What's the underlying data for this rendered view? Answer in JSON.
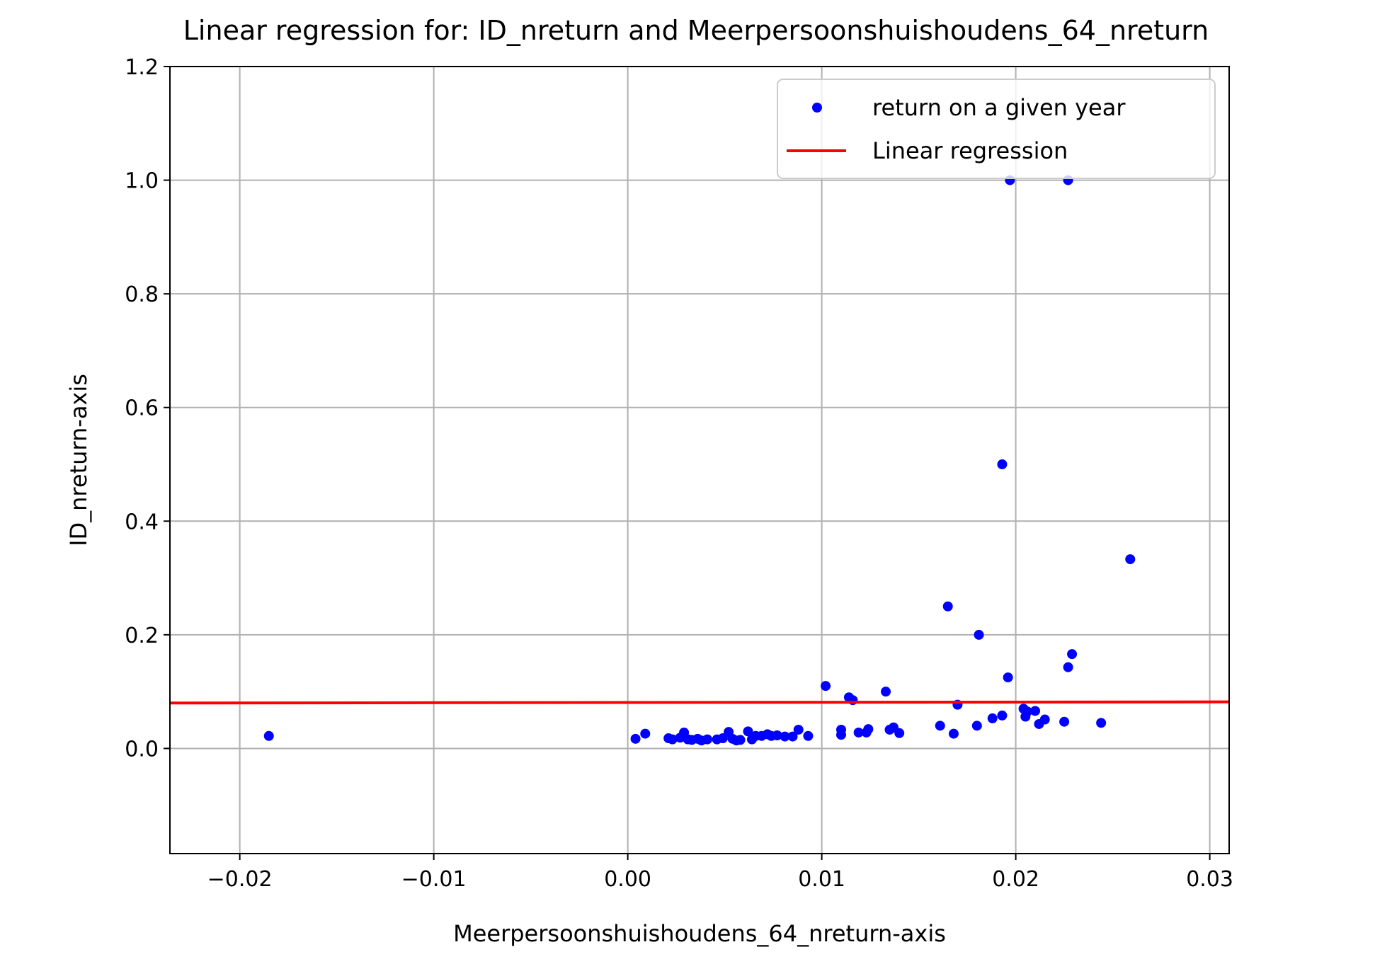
{
  "chart_data": {
    "type": "scatter",
    "title": "Linear regression for: ID_nreturn and Meerpersoonshuishoudens_64_nreturn",
    "xlabel": "Meerpersoonshuishoudens_64_nreturn-axis",
    "ylabel": "ID_nreturn-axis",
    "xlim": [
      -0.0236,
      0.031
    ],
    "ylim": [
      -0.185,
      1.2
    ],
    "xticks": [
      -0.02,
      -0.01,
      0.0,
      0.01,
      0.02,
      0.03
    ],
    "xtick_labels": [
      "−0.02",
      "−0.01",
      "0.00",
      "0.01",
      "0.02",
      "0.03"
    ],
    "yticks": [
      0.0,
      0.2,
      0.4,
      0.6,
      0.8,
      1.0,
      1.2
    ],
    "ytick_labels": [
      "0.0",
      "0.2",
      "0.4",
      "0.6",
      "0.8",
      "1.0",
      "1.2"
    ],
    "grid": true,
    "legend": {
      "position": "top-right",
      "entries": [
        {
          "label": "return on a given year",
          "kind": "marker",
          "color": "#0000ff"
        },
        {
          "label": "Linear regression",
          "kind": "line",
          "color": "#ff0000"
        }
      ]
    },
    "series": [
      {
        "name": "return on a given year",
        "kind": "scatter",
        "color": "#0000ff",
        "points": [
          [
            -0.0185,
            0.022
          ],
          [
            0.0004,
            0.017
          ],
          [
            0.0009,
            0.026
          ],
          [
            0.0021,
            0.018
          ],
          [
            0.0023,
            0.016
          ],
          [
            0.0027,
            0.019
          ],
          [
            0.0029,
            0.028
          ],
          [
            0.0031,
            0.016
          ],
          [
            0.0033,
            0.015
          ],
          [
            0.0036,
            0.017
          ],
          [
            0.0038,
            0.014
          ],
          [
            0.0041,
            0.016
          ],
          [
            0.0046,
            0.016
          ],
          [
            0.0049,
            0.018
          ],
          [
            0.0052,
            0.029
          ],
          [
            0.0054,
            0.017
          ],
          [
            0.0056,
            0.014
          ],
          [
            0.0058,
            0.015
          ],
          [
            0.0062,
            0.03
          ],
          [
            0.0064,
            0.016
          ],
          [
            0.0066,
            0.022
          ],
          [
            0.0069,
            0.022
          ],
          [
            0.0072,
            0.025
          ],
          [
            0.0074,
            0.022
          ],
          [
            0.0077,
            0.023
          ],
          [
            0.0081,
            0.021
          ],
          [
            0.0085,
            0.021
          ],
          [
            0.0088,
            0.033
          ],
          [
            0.0093,
            0.022
          ],
          [
            0.0102,
            0.11
          ],
          [
            0.011,
            0.033
          ],
          [
            0.011,
            0.024
          ],
          [
            0.0114,
            0.09
          ],
          [
            0.0116,
            0.085
          ],
          [
            0.0119,
            0.028
          ],
          [
            0.0123,
            0.028
          ],
          [
            0.0124,
            0.034
          ],
          [
            0.0133,
            0.1
          ],
          [
            0.0135,
            0.033
          ],
          [
            0.0137,
            0.037
          ],
          [
            0.014,
            0.027
          ],
          [
            0.0161,
            0.04
          ],
          [
            0.0165,
            0.25
          ],
          [
            0.0168,
            0.026
          ],
          [
            0.017,
            0.077
          ],
          [
            0.018,
            0.04
          ],
          [
            0.0181,
            0.2
          ],
          [
            0.0188,
            0.053
          ],
          [
            0.0193,
            0.058
          ],
          [
            0.0193,
            0.5
          ],
          [
            0.0196,
            0.125
          ],
          [
            0.0197,
            1.0
          ],
          [
            0.0204,
            0.07
          ],
          [
            0.0205,
            0.056
          ],
          [
            0.0206,
            0.065
          ],
          [
            0.021,
            0.066
          ],
          [
            0.0212,
            0.043
          ],
          [
            0.0215,
            0.051
          ],
          [
            0.0225,
            0.047
          ],
          [
            0.0227,
            0.143
          ],
          [
            0.0227,
            1.0
          ],
          [
            0.0229,
            0.166
          ],
          [
            0.0244,
            0.045
          ],
          [
            0.0259,
            0.333
          ]
        ]
      },
      {
        "name": "Linear regression",
        "kind": "line",
        "color": "#ff0000",
        "points": [
          [
            -0.0236,
            0.08
          ],
          [
            0.031,
            0.082
          ]
        ]
      }
    ]
  }
}
